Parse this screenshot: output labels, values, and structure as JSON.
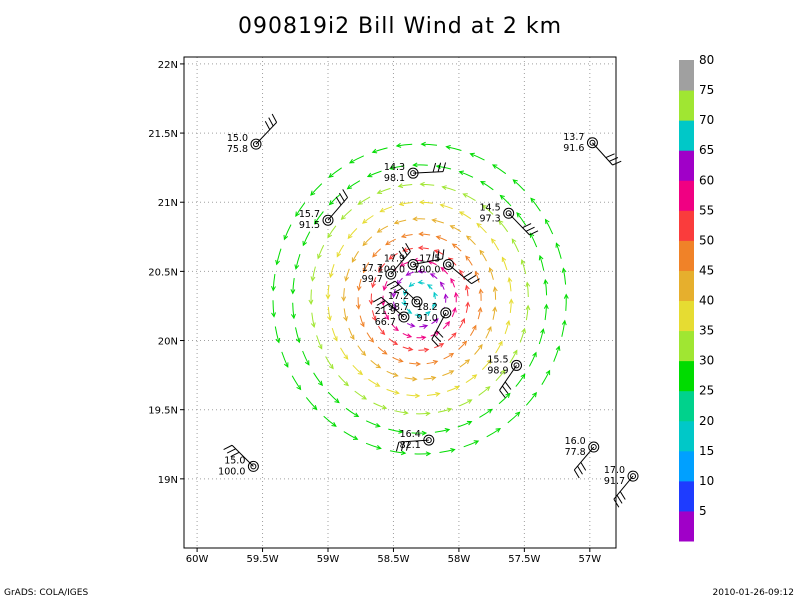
{
  "title": "090819i2 Bill Wind at 2 km",
  "footer": {
    "left": "GrADS: COLA/IGES",
    "right": "2010-01-26-09:12"
  },
  "colors": {
    "dot_grid": "#a0a0a0",
    "barb": "#000000",
    "scale": [
      "#a000c8",
      "#1e3cff",
      "#00a0ff",
      "#00c8c8",
      "#00d28c",
      "#00dc00",
      "#a0e632",
      "#e6dc32",
      "#e6af2d",
      "#f08228",
      "#fa3c3c",
      "#f00082",
      "#a000c8",
      "#00c8c8",
      "#a0e632",
      "#a0a0a0"
    ]
  },
  "chart_data": {
    "type": "wind-streamline-map",
    "title": "090819i2 Bill Wind at 2 km",
    "x_ticks": [
      -60,
      -59.5,
      -59,
      -58.5,
      -58,
      -57.5,
      -57
    ],
    "x_tick_labels": [
      "60W",
      "59.5W",
      "59W",
      "58.5W",
      "58W",
      "57.5W",
      "57W"
    ],
    "y_ticks": [
      19,
      19.5,
      20,
      20.5,
      21,
      21.5,
      22
    ],
    "y_tick_labels": [
      "19N",
      "19.5N",
      "20N",
      "20.5N",
      "21N",
      "21.5N",
      "22N"
    ],
    "xlim": [
      -60.1,
      -56.8
    ],
    "ylim": [
      18.5,
      22.05
    ],
    "grid": true,
    "storm_center": {
      "lon": -58.3,
      "lat": 20.3
    },
    "colorbar": {
      "labels": [
        "5",
        "10",
        "15",
        "20",
        "25",
        "30",
        "35",
        "40",
        "45",
        "50",
        "55",
        "60",
        "65",
        "70",
        "75",
        "80"
      ],
      "values": [
        5,
        10,
        15,
        20,
        25,
        30,
        35,
        40,
        45,
        50,
        55,
        60,
        65,
        70,
        75,
        80
      ]
    },
    "observations": [
      {
        "lon": -59.55,
        "lat": 21.42,
        "top": "15.0",
        "bottom": "75.8"
      },
      {
        "lon": -58.35,
        "lat": 21.21,
        "top": "14.3",
        "bottom": "98.1"
      },
      {
        "lon": -59.0,
        "lat": 20.87,
        "top": "15.7",
        "bottom": "91.5"
      },
      {
        "lon": -57.62,
        "lat": 20.92,
        "top": "14.5",
        "bottom": "97.3"
      },
      {
        "lon": -56.98,
        "lat": 21.43,
        "top": "13.7",
        "bottom": "91.6"
      },
      {
        "lon": -58.35,
        "lat": 20.55,
        "top": "17.9",
        "bottom": "100.0"
      },
      {
        "lon": -58.08,
        "lat": 20.55,
        "top": "17.5",
        "bottom": "100.0"
      },
      {
        "lon": -58.52,
        "lat": 20.48,
        "top": "17.7",
        "bottom": "99.7"
      },
      {
        "lon": -58.32,
        "lat": 20.28,
        "top": "17.2",
        "bottom": "98.7"
      },
      {
        "lon": -58.42,
        "lat": 20.17,
        "top": "21.9",
        "bottom": "66.7"
      },
      {
        "lon": -58.1,
        "lat": 20.2,
        "top": "18.2",
        "bottom": "91.0"
      },
      {
        "lon": -57.56,
        "lat": 19.82,
        "top": "15.5",
        "bottom": "98.9"
      },
      {
        "lon": -58.23,
        "lat": 19.28,
        "top": "16.4",
        "bottom": "82.1"
      },
      {
        "lon": -59.57,
        "lat": 19.09,
        "top": "15.0",
        "bottom": "100.0"
      },
      {
        "lon": -56.97,
        "lat": 19.23,
        "top": "16.0",
        "bottom": "77.8"
      },
      {
        "lon": -56.67,
        "lat": 19.02,
        "top": "17.0",
        "bottom": "91.7"
      }
    ],
    "rings": [
      {
        "radius_deg": 0.12,
        "speed": 67
      },
      {
        "radius_deg": 0.2,
        "speed": 62
      },
      {
        "radius_deg": 0.28,
        "speed": 57
      },
      {
        "radius_deg": 0.37,
        "speed": 52
      },
      {
        "radius_deg": 0.47,
        "speed": 46
      },
      {
        "radius_deg": 0.58,
        "speed": 42
      },
      {
        "radius_deg": 0.7,
        "speed": 38
      },
      {
        "radius_deg": 0.83,
        "speed": 33
      },
      {
        "radius_deg": 0.97,
        "speed": 28
      },
      {
        "radius_deg": 1.12,
        "speed": 25
      }
    ]
  }
}
